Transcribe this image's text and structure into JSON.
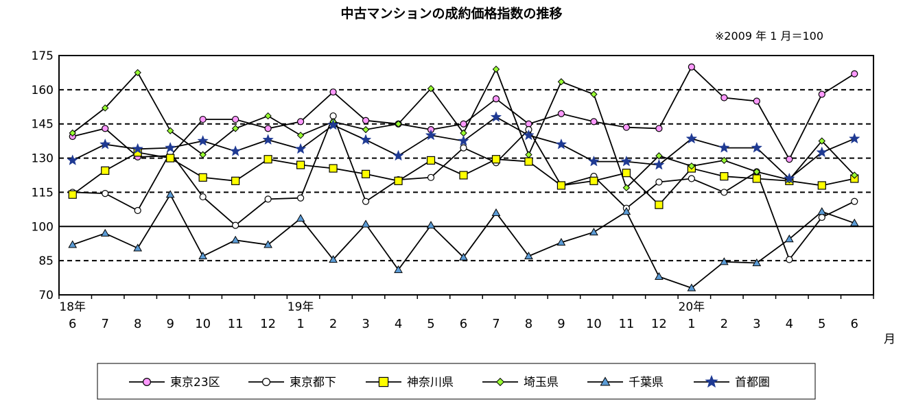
{
  "chart_data": {
    "type": "line",
    "title": "中古マンションの成約価格指数の推移",
    "note": "※2009 年 1 月＝100",
    "x": [
      "6",
      "7",
      "8",
      "9",
      "10",
      "11",
      "12",
      "1",
      "2",
      "3",
      "4",
      "5",
      "6",
      "7",
      "8",
      "9",
      "10",
      "11",
      "12",
      "1",
      "2",
      "3",
      "4",
      "5",
      "6"
    ],
    "year_labels": [
      {
        "label": "18年",
        "index": 0
      },
      {
        "label": "19年",
        "index": 7
      },
      {
        "label": "20年",
        "index": 19
      }
    ],
    "x_unit": "月",
    "ylim": [
      70,
      175
    ],
    "yticks": [
      70,
      85,
      100,
      115,
      130,
      145,
      160,
      175
    ],
    "grid": "dashed horizontal",
    "reference_line": 100,
    "legend_position": "bottom",
    "series": [
      {
        "name": "東京23区",
        "marker": "circle",
        "color": "#ff99ff",
        "values": [
          139.5,
          143,
          130.5,
          131,
          147,
          147,
          143,
          146,
          159,
          146.5,
          145,
          142.5,
          145,
          156,
          145,
          149.5,
          146,
          143.5,
          143,
          170,
          156.5,
          155,
          129.5,
          158,
          167
        ]
      },
      {
        "name": "東京都下",
        "marker": "circle",
        "color": "#ffffff",
        "values": [
          115,
          114.5,
          107,
          132.5,
          113,
          100.5,
          112,
          112.5,
          148.5,
          111,
          120.5,
          121.5,
          134.5,
          128,
          142.5,
          118,
          122,
          108,
          119.5,
          121,
          115,
          124,
          85.5,
          104,
          111
        ]
      },
      {
        "name": "神奈川県",
        "marker": "square",
        "color": "#ffff00",
        "values": [
          114,
          124.5,
          132.5,
          130,
          121.5,
          120,
          129.5,
          127,
          125.5,
          123,
          120,
          129,
          122.5,
          129.5,
          128.5,
          118,
          120,
          123.5,
          109.5,
          125.5,
          122,
          121,
          120,
          118,
          121
        ]
      },
      {
        "name": "埼玉県",
        "marker": "diamond",
        "color": "#99ff33",
        "values": [
          141,
          152,
          167.5,
          142,
          131.5,
          143,
          148.5,
          140,
          146,
          142.5,
          145,
          160.5,
          141,
          169,
          131.5,
          163.5,
          158,
          117,
          131,
          126.5,
          129,
          124,
          120.5,
          137.5,
          122.5
        ]
      },
      {
        "name": "千葉県",
        "marker": "triangle",
        "color": "#5b9bd5",
        "values": [
          92,
          97,
          90.5,
          114,
          87,
          94,
          92,
          103.5,
          85.5,
          101,
          81,
          100.5,
          86.5,
          106,
          87,
          93,
          97.5,
          106.5,
          78,
          73,
          84.5,
          84,
          94.5,
          106.5,
          101.5
        ]
      },
      {
        "name": "首都圏",
        "marker": "star",
        "color": "#1f3a93",
        "values": [
          129,
          136,
          134,
          134.5,
          137.5,
          133,
          138,
          134,
          144.5,
          138,
          131,
          140,
          137.5,
          148,
          140,
          136,
          128.5,
          128.5,
          127,
          138.5,
          134.5,
          134.5,
          121,
          132.5,
          138.5
        ]
      }
    ]
  }
}
